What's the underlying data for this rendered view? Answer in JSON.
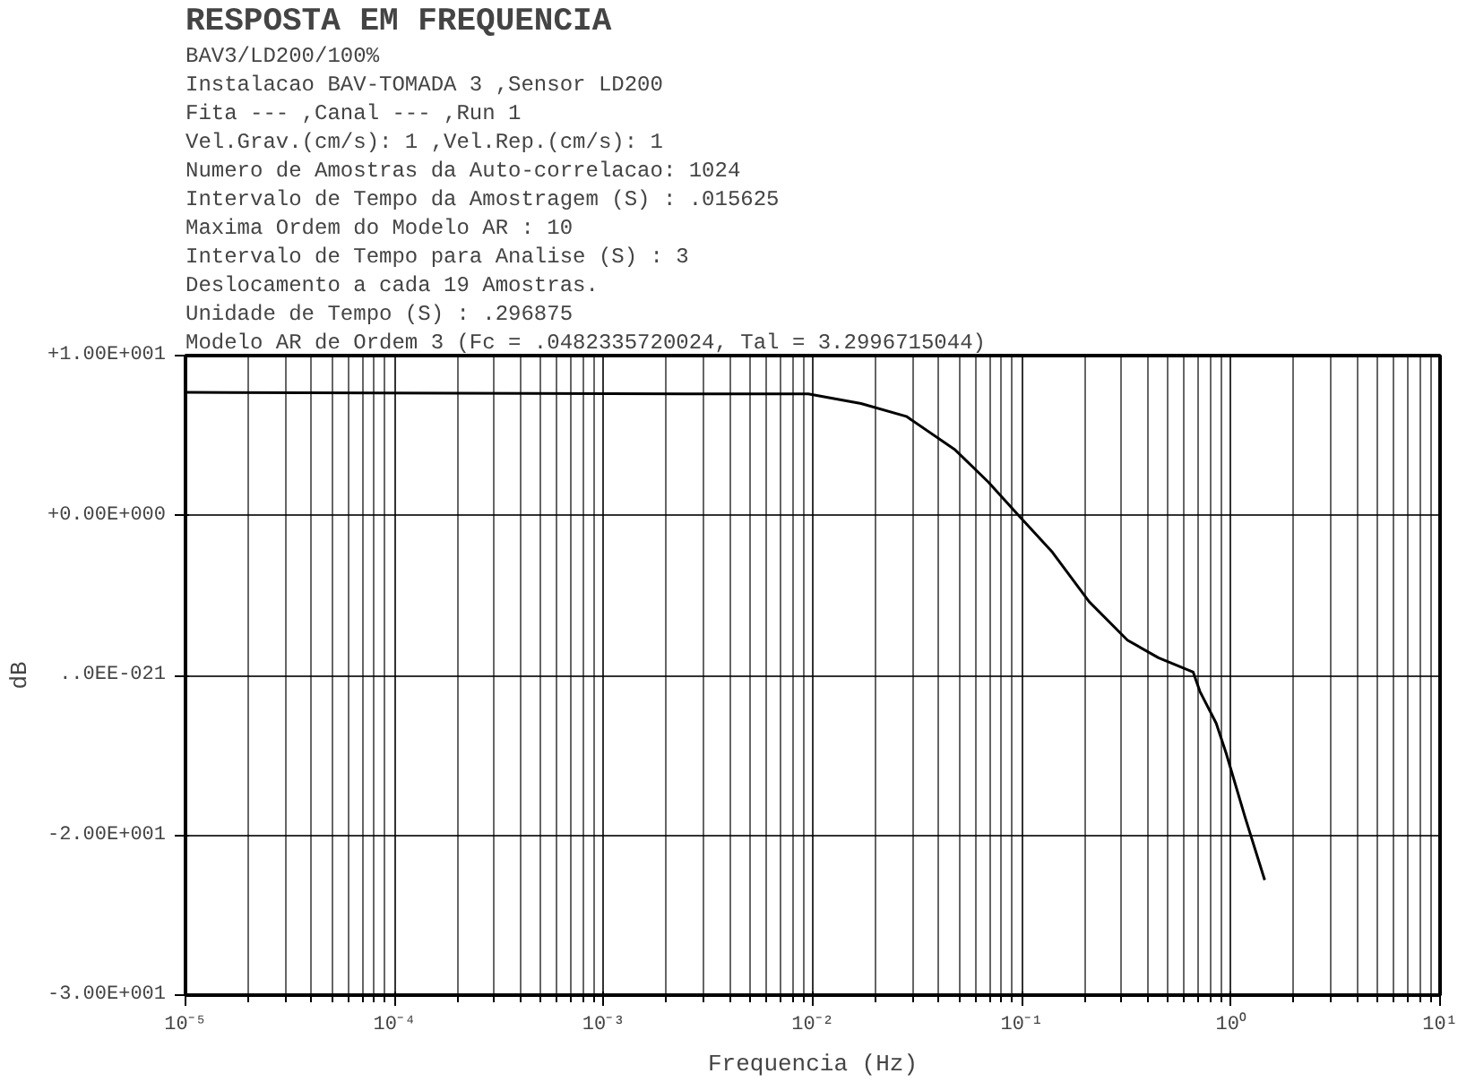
{
  "chart_data": {
    "type": "line",
    "title": "RESPOSTA EM FREQUENCIA",
    "subtitle": "BAV3/LD200/100%",
    "annotations": [
      "Instalacao BAV-TOMADA 3          ,Sensor LD200",
      "Fita ---      ,Canal ---      ,Run 1",
      "Vel.Grav.(cm/s): 1 ,Vel.Rep.(cm/s): 1",
      "Numero de Amostras da Auto-correlacao: 1024",
      "Intervalo de Tempo da Amostragem (S) : .015625",
      "Maxima Ordem do Modelo AR            : 10",
      "Intervalo de Tempo para Analise (S) : 3",
      "Deslocamento a cada 19 Amostras.",
      "Unidade de Tempo (S)                 : .296875",
      "Modelo AR de Ordem 3 (Fc = .0482335720024, Tal = 3.2996715044)"
    ],
    "xlabel": "Frequencia (Hz)",
    "ylabel": "dB",
    "log": "x",
    "grid": true,
    "marker": "none",
    "line_style": "solid",
    "xlim": [
      1e-05,
      10
    ],
    "ylim": [
      -30,
      10
    ],
    "xticks": [
      {
        "value": 1e-05,
        "label": "10⁻⁵"
      },
      {
        "value": 0.0001,
        "label": "10⁻⁴"
      },
      {
        "value": 0.001,
        "label": "10⁻³"
      },
      {
        "value": 0.01,
        "label": "10⁻²"
      },
      {
        "value": 0.1,
        "label": "10⁻¹"
      },
      {
        "value": 1,
        "label": "10⁰"
      },
      {
        "value": 10,
        "label": "10¹"
      }
    ],
    "yticks": [
      {
        "value": 10,
        "label": "+1.00E+001"
      },
      {
        "value": 0,
        "label": "+0.00E+000"
      },
      {
        "value": -10,
        "label": "..0EE-021"
      },
      {
        "value": -20,
        "label": "-2.00E+001"
      },
      {
        "value": -30,
        "label": "-3.00E+001"
      }
    ],
    "series": [
      {
        "color": "#000000",
        "x": [
          1e-05,
          0.0048,
          0.0095,
          0.017,
          0.028,
          0.048,
          0.069,
          0.095,
          0.14,
          0.21,
          0.32,
          0.45,
          0.66,
          0.71,
          0.85,
          0.95,
          1.17,
          1.45
        ],
        "values": [
          7.7,
          7.6,
          7.6,
          7.0,
          6.2,
          4.1,
          2.1,
          0.1,
          -2.3,
          -5.4,
          -7.8,
          -8.9,
          -9.8,
          -11.0,
          -13.0,
          -14.9,
          -18.9,
          -22.8
        ]
      }
    ]
  }
}
